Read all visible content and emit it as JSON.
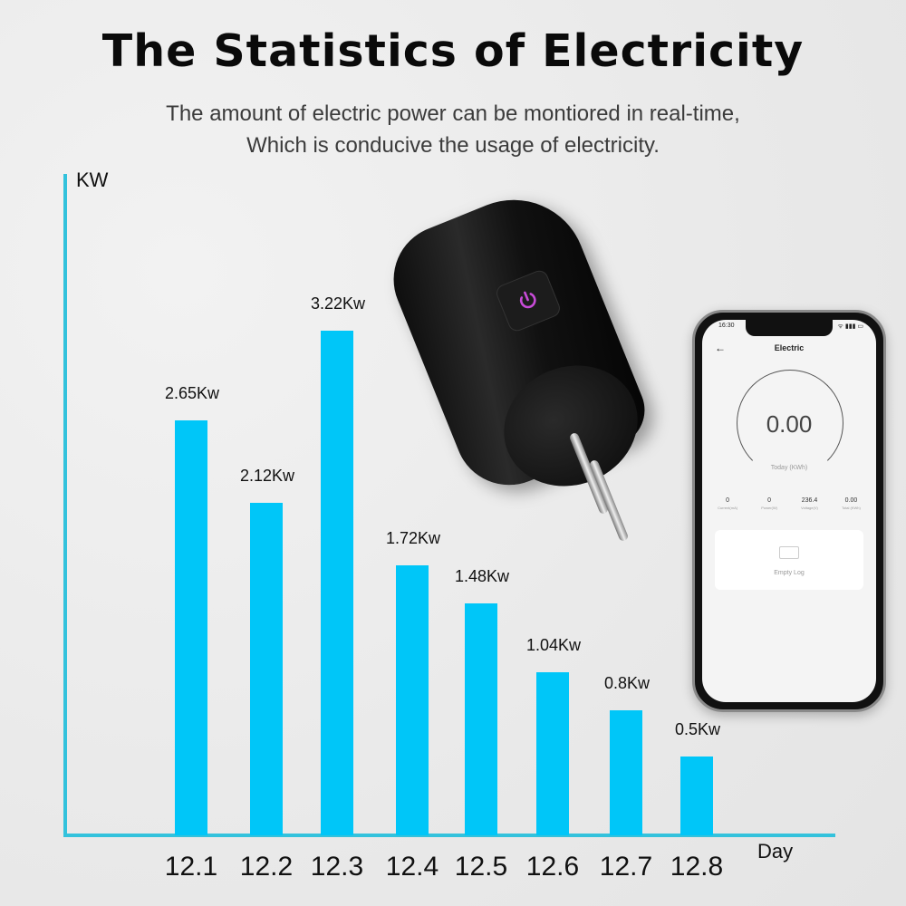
{
  "header": {
    "title": "The Statistics of Electricity",
    "subtitle_line1": "The amount of electric power can be montiored in real-time,",
    "subtitle_line2": "Which is conducive the usage of electricity."
  },
  "chart_data": {
    "type": "bar",
    "title": "The Statistics of Electricity",
    "xlabel": "Day",
    "ylabel": "KW",
    "categories": [
      "12.1",
      "12.2",
      "12.3",
      "12.4",
      "12.5",
      "12.6",
      "12.7",
      "12.8"
    ],
    "values": [
      2.65,
      2.12,
      3.22,
      1.72,
      1.48,
      1.04,
      0.8,
      0.5
    ],
    "value_labels": [
      "2.65Kw",
      "2.12Kw",
      "3.22Kw",
      "1.72Kw",
      "1.48Kw",
      "1.04Kw",
      "0.8Kw",
      "0.5Kw"
    ],
    "bar_color": "#00c6f8",
    "axis_color": "#33c2dc",
    "grid": false,
    "legend": "none"
  },
  "phone": {
    "status_time": "16:30",
    "status_icons": "ᯤ ▮▮▮ ▭",
    "back_icon": "←",
    "app_title": "Electric",
    "gauge_value": "0.00",
    "gauge_label": "Today (KWh)",
    "stats": [
      {
        "value": "0",
        "label": "Current(mA)"
      },
      {
        "value": "0",
        "label": "Power(W)"
      },
      {
        "value": "236.4",
        "label": "Voltage(V)"
      },
      {
        "value": "0.00",
        "label": "Total (KWh)"
      }
    ],
    "log_text": "Empty Log"
  },
  "device": {
    "button_icon": "power-icon",
    "button_color": "#c84bd8"
  }
}
